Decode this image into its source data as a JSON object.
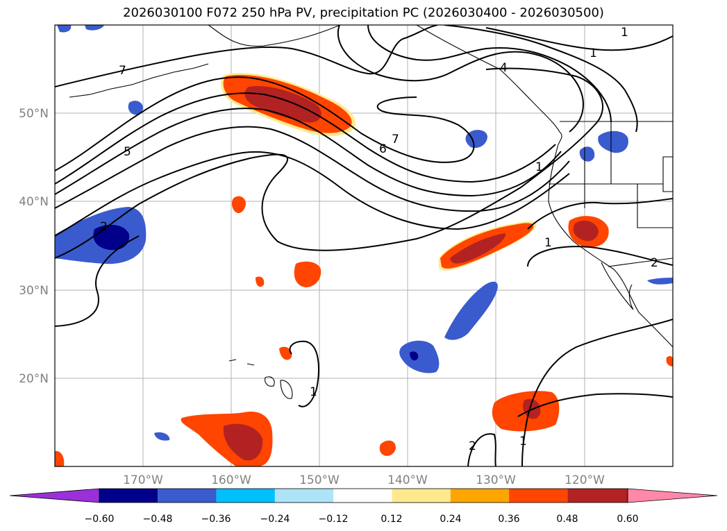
{
  "title": "2026030100 F072 250 hPa PV, precipitation PC (2026030400 - 2026030500)",
  "lat_labels": [
    "50°N",
    "40°N",
    "30°N",
    "20°N"
  ],
  "lon_labels": [
    "170°W",
    "160°W",
    "150°W",
    "140°W",
    "130°W",
    "120°W"
  ],
  "colorbar": {
    "ticks": [
      "−0.60",
      "−0.48",
      "−0.36",
      "−0.24",
      "−0.12",
      "0.12",
      "0.24",
      "0.36",
      "0.48",
      "0.60"
    ],
    "colors": [
      "#9b30d9",
      "#00008b",
      "#3a5bcd",
      "#00bfff",
      "#ade4f7",
      "#ffffff",
      "#ffe98c",
      "#ffa500",
      "#ff4500",
      "#b22222",
      "#ff88aa"
    ]
  },
  "contour_labels": [
    "7",
    "5",
    "2",
    "6",
    "7",
    "1",
    "4",
    "1",
    "1",
    "1",
    "2",
    "1",
    "2",
    "1"
  ],
  "colors": {
    "grid": "#b0b0b0",
    "coast": "#000000",
    "contour": "#000000",
    "tick_text": "#808080"
  }
}
